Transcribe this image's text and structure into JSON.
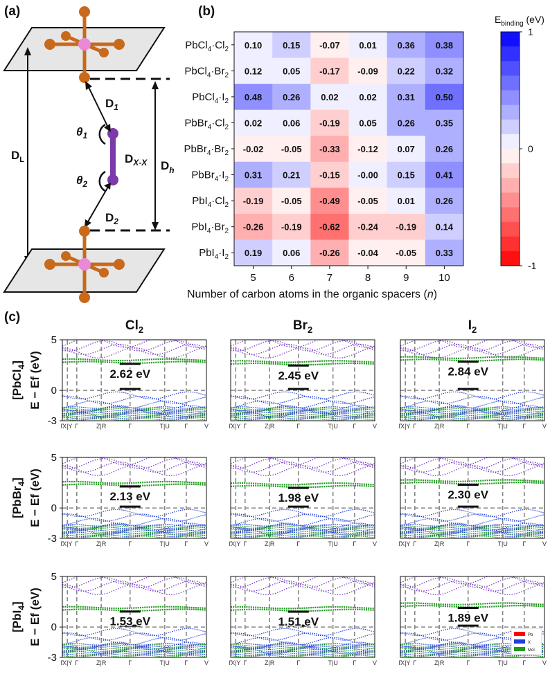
{
  "panel_labels": {
    "a": "(a)",
    "b": "(b)",
    "c": "(c)"
  },
  "diagram": {
    "labels": {
      "DL": "D",
      "DL_sub": "L",
      "D1": "D",
      "D1_sub": "1",
      "D2": "D",
      "D2_sub": "2",
      "Dxx": "D",
      "Dxx_sub": "X-X",
      "Dh": "D",
      "Dh_sub": "h",
      "theta1": "θ",
      "theta1_sub": "1",
      "theta2": "θ",
      "theta2_sub": "2"
    },
    "colors": {
      "octahedron": "#c8691c",
      "center": "#e98ad6",
      "molecule": "#7b3aa8",
      "plane": "#e6e6e6"
    }
  },
  "chart_data": [
    {
      "type": "heatmap",
      "rows": [
        "PbCl4·Cl2",
        "PbCl4·Br2",
        "PbCl4·I2",
        "PbBr4·Cl2",
        "PbBr4·Br2",
        "PbBr4·I2",
        "PbI4·Cl2",
        "PbI4·Br2",
        "PbI4·I2"
      ],
      "row_labels": [
        {
          "a": "PbCl",
          "b": "4",
          "c": "·Cl",
          "d": "2"
        },
        {
          "a": "PbCl",
          "b": "4",
          "c": "·Br",
          "d": "2"
        },
        {
          "a": "PbCl",
          "b": "4",
          "c": "·I",
          "d": "2"
        },
        {
          "a": "PbBr",
          "b": "4",
          "c": "·Cl",
          "d": "2"
        },
        {
          "a": "PbBr",
          "b": "4",
          "c": "·Br",
          "d": "2"
        },
        {
          "a": "PbBr",
          "b": "4",
          "c": "·I",
          "d": "2"
        },
        {
          "a": "PbI",
          "b": "4",
          "c": "·Cl",
          "d": "2"
        },
        {
          "a": "PbI",
          "b": "4",
          "c": "·Br",
          "d": "2"
        },
        {
          "a": "PbI",
          "b": "4",
          "c": "·I",
          "d": "2"
        }
      ],
      "columns": [
        "5",
        "6",
        "7",
        "8",
        "9",
        "10"
      ],
      "values": [
        [
          0.1,
          0.15,
          -0.07,
          0.01,
          0.36,
          0.38
        ],
        [
          0.12,
          0.05,
          -0.17,
          -0.09,
          0.22,
          0.32
        ],
        [
          0.48,
          0.26,
          0.02,
          0.02,
          0.31,
          0.5
        ],
        [
          0.02,
          0.06,
          -0.19,
          0.05,
          0.26,
          0.35
        ],
        [
          -0.02,
          -0.05,
          -0.33,
          -0.12,
          0.07,
          0.26
        ],
        [
          0.31,
          0.21,
          -0.15,
          -0.0,
          0.15,
          0.41
        ],
        [
          -0.19,
          -0.05,
          -0.49,
          -0.05,
          0.01,
          0.26
        ],
        [
          -0.26,
          -0.19,
          -0.62,
          -0.24,
          -0.19,
          0.14
        ],
        [
          0.19,
          0.06,
          -0.26,
          -0.04,
          -0.05,
          0.33
        ]
      ],
      "value_labels": [
        [
          "0.10",
          "0.15",
          "-0.07",
          "0.01",
          "0.36",
          "0.38"
        ],
        [
          "0.12",
          "0.05",
          "-0.17",
          "-0.09",
          "0.22",
          "0.32"
        ],
        [
          "0.48",
          "0.26",
          "0.02",
          "0.02",
          "0.31",
          "0.50"
        ],
        [
          "0.02",
          "0.06",
          "-0.19",
          "0.05",
          "0.26",
          "0.35"
        ],
        [
          "-0.02",
          "-0.05",
          "-0.33",
          "-0.12",
          "0.07",
          "0.26"
        ],
        [
          "0.31",
          "0.21",
          "-0.15",
          "-0.00",
          "0.15",
          "0.41"
        ],
        [
          "-0.19",
          "-0.05",
          "-0.49",
          "-0.05",
          "0.01",
          "0.26"
        ],
        [
          "-0.26",
          "-0.19",
          "-0.62",
          "-0.24",
          "-0.19",
          "0.14"
        ],
        [
          "0.19",
          "0.06",
          "-0.26",
          "-0.04",
          "-0.05",
          "0.33"
        ]
      ],
      "xlabel": "Number of carbon atoms in the organic spacers (n)",
      "xlabel_main": "Number of carbon atoms in the organic spacers (",
      "xlabel_var": "n",
      "xlabel_end": ")",
      "colorbar": {
        "title": "E",
        "title_sub": "binding",
        "title_unit": " (eV)",
        "min": -1,
        "max": 1,
        "ticks": [
          "1",
          "0",
          "-1"
        ],
        "levels": 16,
        "colormap": "bwr_r"
      }
    },
    {
      "type": "line",
      "description_kind": "band structure grid",
      "column_titles": [
        {
          "a": "Cl",
          "b": "2"
        },
        {
          "a": "Br",
          "b": "2"
        },
        {
          "a": "I",
          "b": "2"
        }
      ],
      "row_titles": [
        {
          "a": "[PbCl",
          "b": "4",
          "c": "]"
        },
        {
          "a": "[PbBr",
          "b": "4",
          "c": "]"
        },
        {
          "a": "[PbI",
          "b": "4",
          "c": "]"
        }
      ],
      "ylabel": "E − Ef (eV)",
      "ylim": [
        -3,
        5
      ],
      "yticks": [
        "5",
        "0",
        "-3"
      ],
      "kpoints": [
        "Γ",
        "X|Y",
        "Γ",
        "Z|R",
        "Γ",
        "T|U",
        "Γ",
        "V"
      ],
      "band_gaps": [
        [
          "2.62 eV",
          "2.45 eV",
          "2.84 eV"
        ],
        [
          "2.13 eV",
          "1.98 eV",
          "2.30 eV"
        ],
        [
          "1.53 eV",
          "1.51 eV",
          "1.89 eV"
        ]
      ],
      "gap_values_eV": [
        [
          2.62,
          2.45,
          2.84
        ],
        [
          2.13,
          1.98,
          2.3
        ],
        [
          1.53,
          1.51,
          1.89
        ]
      ],
      "legend": [
        "Pb",
        "X",
        "Mol"
      ],
      "colors": {
        "Pb": "#ff0000",
        "X": "#1f3fd6",
        "Mol": "#1f9a1f",
        "conduction": "#7a3bc8"
      }
    }
  ]
}
